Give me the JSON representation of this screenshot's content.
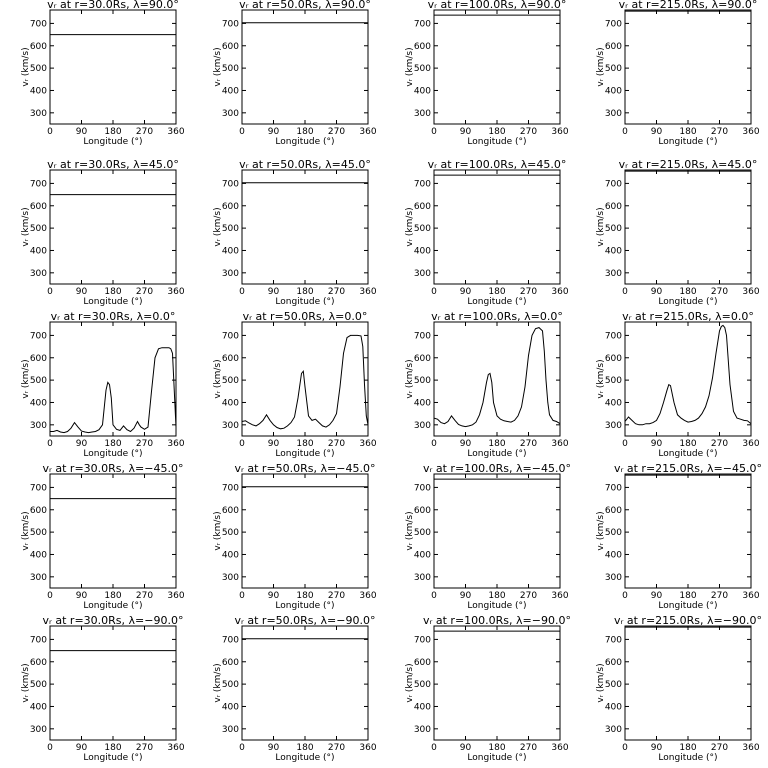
{
  "chart_data": {
    "type": "line",
    "xlabel": "Longitude (°)",
    "ylabel": "vᵣ (km/s)",
    "xlim": [
      0,
      360
    ],
    "ylim": [
      250,
      760
    ],
    "xticks": [
      "0",
      "90",
      "180",
      "270",
      "360"
    ],
    "yticks": [
      "300",
      "400",
      "500",
      "600",
      "700"
    ],
    "grid": false,
    "radii": [
      "30.0",
      "50.0",
      "100.0",
      "215.0"
    ],
    "latitudes": [
      "90.0",
      "45.0",
      "0.0",
      "−45.0",
      "−90.0"
    ],
    "panels": [
      {
        "title": "vᵣ at r=30.0Rs, λ=90.0°",
        "constant": 650
      },
      {
        "title": "vᵣ at r=50.0Rs, λ=90.0°",
        "constant": 703
      },
      {
        "title": "vᵣ at r=100.0Rs, λ=90.0°",
        "constant": 737
      },
      {
        "title": "vᵣ at r=215.0Rs, λ=90.0°",
        "constant": 755
      },
      {
        "title": "vᵣ at r=30.0Rs, λ=45.0°",
        "constant": 650
      },
      {
        "title": "vᵣ at r=50.0Rs, λ=45.0°",
        "constant": 703
      },
      {
        "title": "vᵣ at r=100.0Rs, λ=45.0°",
        "constant": 737
      },
      {
        "title": "vᵣ at r=215.0Rs, λ=45.0°",
        "constant": 755
      },
      {
        "title": "vᵣ at r=30.0Rs, λ=0.0°",
        "x": [
          0,
          10,
          20,
          30,
          40,
          50,
          60,
          70,
          80,
          90,
          100,
          110,
          120,
          130,
          140,
          150,
          160,
          165,
          170,
          175,
          180,
          190,
          200,
          210,
          220,
          230,
          240,
          250,
          255,
          260,
          270,
          280,
          290,
          300,
          310,
          320,
          330,
          340,
          345,
          350,
          355,
          360
        ],
        "y": [
          270,
          270,
          275,
          268,
          265,
          270,
          285,
          310,
          290,
          272,
          268,
          265,
          268,
          270,
          278,
          300,
          455,
          490,
          480,
          420,
          300,
          280,
          275,
          295,
          278,
          270,
          285,
          315,
          300,
          290,
          280,
          290,
          450,
          600,
          640,
          645,
          645,
          645,
          640,
          620,
          450,
          290
        ]
      },
      {
        "title": "vᵣ at r=50.0Rs, λ=0.0°",
        "x": [
          0,
          10,
          20,
          30,
          40,
          50,
          60,
          70,
          80,
          90,
          100,
          110,
          120,
          130,
          140,
          150,
          160,
          170,
          175,
          180,
          190,
          200,
          210,
          220,
          230,
          240,
          250,
          260,
          270,
          280,
          290,
          300,
          310,
          320,
          330,
          340,
          345,
          350,
          355,
          360
        ],
        "y": [
          315,
          318,
          308,
          300,
          295,
          305,
          320,
          345,
          320,
          300,
          288,
          282,
          285,
          295,
          310,
          335,
          420,
          530,
          540,
          470,
          340,
          320,
          325,
          310,
          295,
          290,
          300,
          320,
          350,
          470,
          620,
          690,
          700,
          700,
          700,
          698,
          650,
          480,
          340,
          300
        ]
      },
      {
        "title": "vᵣ at r=100.0Rs, λ=0.0°",
        "x": [
          0,
          10,
          20,
          30,
          40,
          50,
          60,
          70,
          80,
          90,
          100,
          110,
          120,
          130,
          140,
          150,
          155,
          160,
          165,
          170,
          180,
          190,
          200,
          210,
          220,
          230,
          240,
          250,
          260,
          270,
          280,
          290,
          300,
          310,
          315,
          320,
          325,
          330,
          340,
          350,
          360
        ],
        "y": [
          330,
          325,
          310,
          305,
          315,
          340,
          320,
          302,
          295,
          292,
          295,
          300,
          312,
          345,
          400,
          490,
          525,
          530,
          490,
          400,
          340,
          325,
          318,
          315,
          312,
          320,
          340,
          380,
          470,
          610,
          700,
          730,
          735,
          720,
          630,
          500,
          400,
          345,
          320,
          315,
          305
        ]
      },
      {
        "title": "vᵣ at r=215.0Rs, λ=0.0°",
        "x": [
          0,
          10,
          20,
          30,
          40,
          50,
          60,
          70,
          80,
          90,
          100,
          110,
          120,
          125,
          130,
          140,
          150,
          160,
          170,
          180,
          190,
          200,
          210,
          220,
          230,
          240,
          250,
          260,
          270,
          275,
          280,
          285,
          290,
          300,
          310,
          320,
          330,
          340,
          350,
          360
        ],
        "y": [
          315,
          335,
          320,
          305,
          300,
          300,
          305,
          305,
          310,
          320,
          350,
          400,
          455,
          480,
          475,
          400,
          345,
          330,
          320,
          312,
          315,
          320,
          330,
          350,
          380,
          430,
          510,
          620,
          720,
          740,
          745,
          735,
          700,
          480,
          360,
          330,
          325,
          320,
          318,
          305
        ]
      },
      {
        "title": "vᵣ at r=30.0Rs, λ=−45.0°",
        "constant": 650
      },
      {
        "title": "vᵣ at r=50.0Rs, λ=−45.0°",
        "constant": 703
      },
      {
        "title": "vᵣ at r=100.0Rs, λ=−45.0°",
        "constant": 737
      },
      {
        "title": "vᵣ at r=215.0Rs, λ=−45.0°",
        "constant": 755
      },
      {
        "title": "vᵣ at r=30.0Rs, λ=−90.0°",
        "constant": 650
      },
      {
        "title": "vᵣ at r=50.0Rs, λ=−90.0°",
        "constant": 703
      },
      {
        "title": "vᵣ at r=100.0Rs, λ=−90.0°",
        "constant": 737
      },
      {
        "title": "vᵣ at r=215.0Rs, λ=−90.0°",
        "constant": 755
      }
    ]
  }
}
